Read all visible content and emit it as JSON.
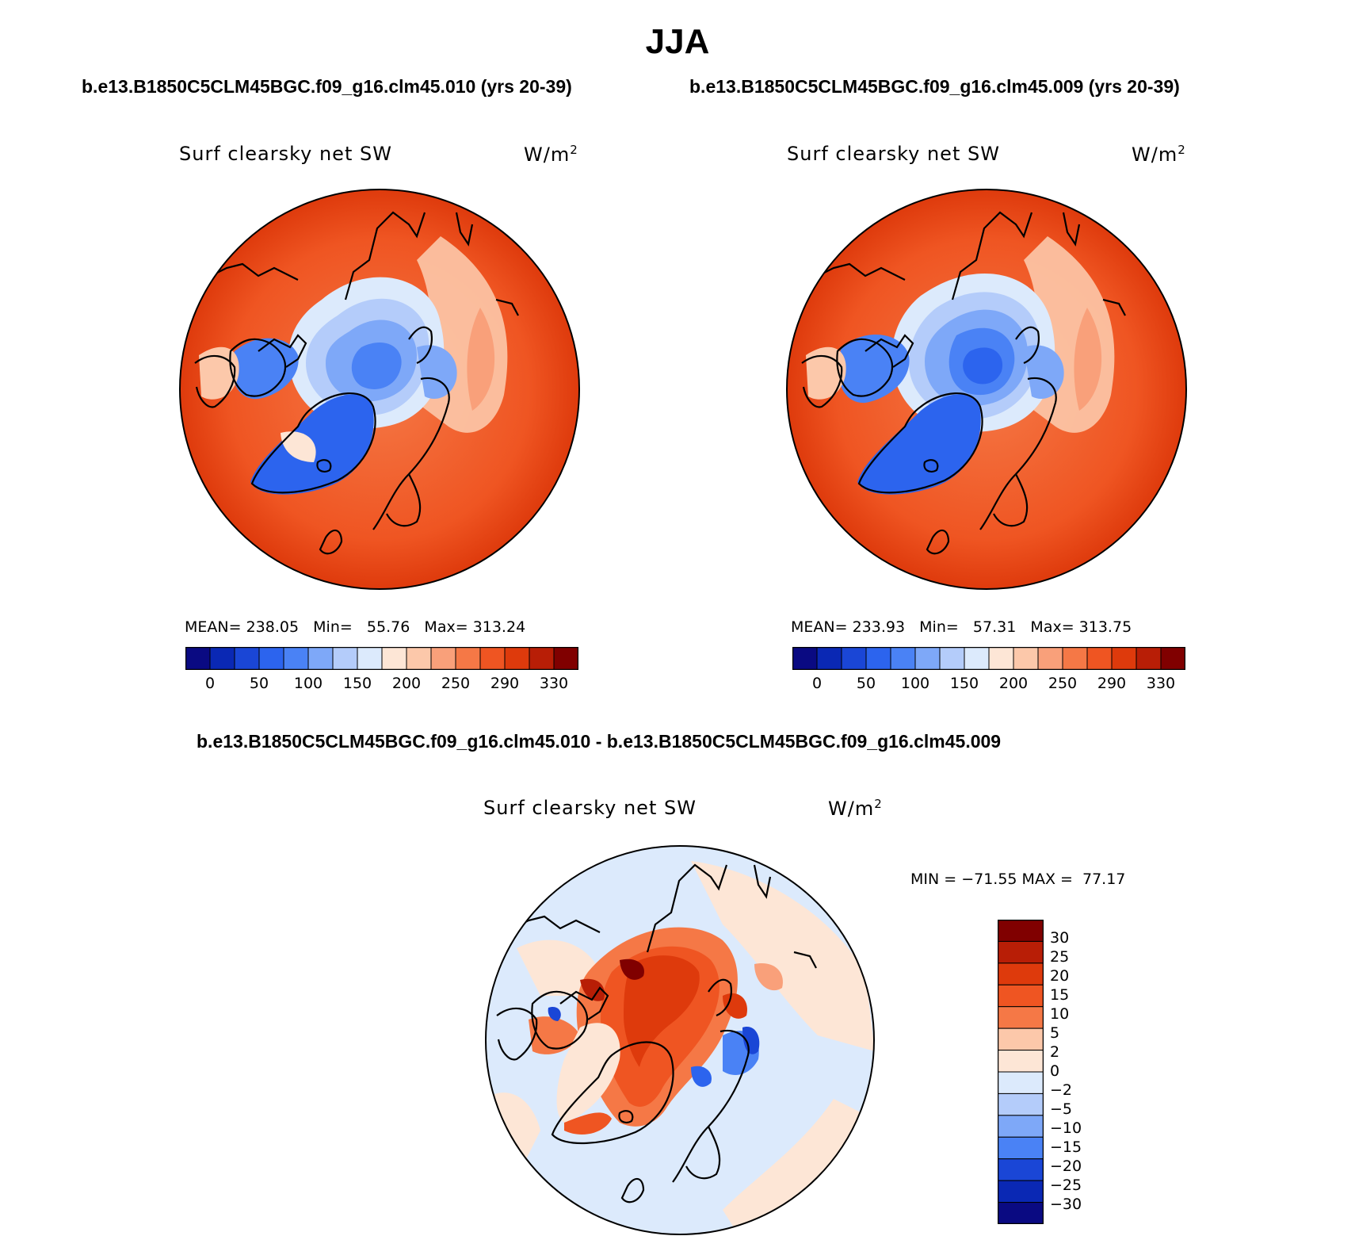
{
  "title": "JJA",
  "subtitles": {
    "left": "b.e13.B1850C5CLM45BGC.f09_g16.clm45.010 (yrs 20-39)",
    "right": "b.e13.B1850C5CLM45BGC.f09_g16.clm45.009 (yrs 20-39)",
    "diff": "b.e13.B1850C5CLM45BGC.f09_g16.clm45.010 - b.e13.B1850C5CLM45BGC.f09_g16.clm45.009"
  },
  "panels": [
    {
      "variable": "Surf clearsky net SW",
      "units": "W/m",
      "units_exp": "2",
      "stats": "MEAN= 238.05   Min=   55.76   Max= 313.24"
    },
    {
      "variable": "Surf clearsky net SW",
      "units": "W/m",
      "units_exp": "2",
      "stats": "MEAN= 233.93   Min=   57.31   Max= 313.75"
    }
  ],
  "diff_panel": {
    "variable": "Surf clearsky net SW",
    "units": "W/m",
    "units_exp": "2",
    "stats": "MIN = −71.55 MAX =  77.17"
  },
  "colorbar_abs": {
    "colors": [
      "#0a0a82",
      "#0a28b4",
      "#1a46d6",
      "#2c64ee",
      "#4a82f5",
      "#7ea8f8",
      "#b4ccfa",
      "#dceafc",
      "#fde6d6",
      "#fcc8aa",
      "#f9a07a",
      "#f57846",
      "#ef5522",
      "#de3a0c",
      "#b81e06",
      "#800000"
    ],
    "tick_labels": [
      "0",
      "50",
      "100",
      "150",
      "200",
      "250",
      "290",
      "330"
    ]
  },
  "colorbar_diff": {
    "colors": [
      "#800000",
      "#b81e06",
      "#de3a0c",
      "#ef5522",
      "#f57846",
      "#fcc8aa",
      "#fde6d6",
      "#dceafc",
      "#b4ccfa",
      "#7ea8f8",
      "#4a82f5",
      "#1a46d6",
      "#0a28b4",
      "#0a0a82"
    ],
    "tick_labels": [
      "30",
      "25",
      "20",
      "15",
      "10",
      "5",
      "2",
      "0",
      "−2",
      "−5",
      "−10",
      "−15",
      "−20",
      "−25",
      "−30"
    ]
  }
}
